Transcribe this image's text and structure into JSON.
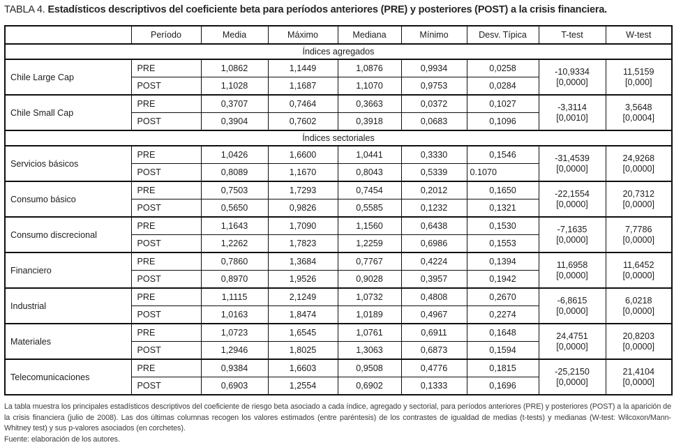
{
  "title": {
    "label": "TABLA 4.",
    "text": "Estadísticos descriptivos del coeficiente beta para períodos anteriores (PRE) y posteriores (POST) a la crisis financiera."
  },
  "colors": {
    "background": "#ffffff",
    "text": "#1c1c1c",
    "border": "#0e0e0e",
    "footnote_text": "#3a3a3a"
  },
  "table": {
    "columns": [
      "",
      "Período",
      "Media",
      "Máximo",
      "Mediana",
      "Mínimo",
      "Desv. Típica",
      "T-test",
      "W-test"
    ],
    "sections": [
      {
        "title": "Índices agregados",
        "groups": [
          {
            "name": "Chile Large Cap",
            "rows": [
              {
                "period": "PRE",
                "media": "1,0862",
                "maximo": "1,1449",
                "mediana": "1,0876",
                "minimo": "0,9934",
                "desv": "0,0258"
              },
              {
                "period": "POST",
                "media": "1,1028",
                "maximo": "1,1687",
                "mediana": "1,1070",
                "minimo": "0,9753",
                "desv": "0,0284"
              }
            ],
            "t_test": {
              "stat": "-10,9334",
              "p": "[0,0000]"
            },
            "w_test": {
              "stat": "11,5159",
              "p": "[0,000]"
            }
          },
          {
            "name": "Chile Small Cap",
            "rows": [
              {
                "period": "PRE",
                "media": "0,3707",
                "maximo": "0,7464",
                "mediana": "0,3663",
                "minimo": "0,0372",
                "desv": "0,1027"
              },
              {
                "period": "POST",
                "media": "0,3904",
                "maximo": "0,7602",
                "mediana": "0,3918",
                "minimo": "0,0683",
                "desv": "0,1096"
              }
            ],
            "t_test": {
              "stat": "-3,3114",
              "p": "[0,0010]"
            },
            "w_test": {
              "stat": "3,5648",
              "p": "[0,0004]"
            }
          }
        ]
      },
      {
        "title": "Índices sectoriales",
        "groups": [
          {
            "name": "Servicios básicos",
            "rows": [
              {
                "period": "PRE",
                "media": "1,0426",
                "maximo": "1,6600",
                "mediana": "1,0441",
                "minimo": "0,3330",
                "desv": "0,1546"
              },
              {
                "period": "POST",
                "media": "0,8089",
                "maximo": "1,1670",
                "mediana": "0,8043",
                "minimo": "0,5339",
                "desv": "0.1070",
                "desv_align": "left"
              }
            ],
            "t_test": {
              "stat": "-31,4539",
              "p": "[0,0000]"
            },
            "w_test": {
              "stat": "24,9268",
              "p": "[0,0000]"
            }
          },
          {
            "name": "Consumo básico",
            "rows": [
              {
                "period": "PRE",
                "media": "0,7503",
                "maximo": "1,7293",
                "mediana": "0,7454",
                "minimo": "0,2012",
                "desv": "0,1650"
              },
              {
                "period": "POST",
                "media": "0,5650",
                "maximo": "0,9826",
                "mediana": "0,5585",
                "minimo": "0,1232",
                "desv": "0,1321"
              }
            ],
            "t_test": {
              "stat": "-22,1554",
              "p": "[0,0000]"
            },
            "w_test": {
              "stat": "20,7312",
              "p": "[0,0000]"
            }
          },
          {
            "name": "Consumo discrecional",
            "rows": [
              {
                "period": "PRE",
                "media": "1,1643",
                "maximo": "1,7090",
                "mediana": "1,1560",
                "minimo": "0,6438",
                "desv": "0,1530"
              },
              {
                "period": "POST",
                "media": "1,2262",
                "maximo": "1,7823",
                "mediana": "1,2259",
                "minimo": "0,6986",
                "desv": "0,1553"
              }
            ],
            "t_test": {
              "stat": "-7,1635",
              "p": "[0,0000]"
            },
            "w_test": {
              "stat": "7,7786",
              "p": "[0,0000]"
            }
          },
          {
            "name": "Financiero",
            "rows": [
              {
                "period": "PRE",
                "media": "0,7860",
                "maximo": "1,3684",
                "mediana": "0,7767",
                "minimo": "0,4224",
                "desv": "0,1394"
              },
              {
                "period": "POST",
                "media": "0,8970",
                "maximo": "1,9526",
                "mediana": "0,9028",
                "minimo": "0,3957",
                "desv": "0,1942"
              }
            ],
            "t_test": {
              "stat": "11,6958",
              "p": "[0,0000]"
            },
            "w_test": {
              "stat": "11,6452",
              "p": "[0,0000]"
            }
          },
          {
            "name": "Industrial",
            "rows": [
              {
                "period": "PRE",
                "media": "1,1115",
                "maximo": "2,1249",
                "mediana": "1,0732",
                "minimo": "0,4808",
                "desv": "0,2670"
              },
              {
                "period": "POST",
                "media": "1,0163",
                "maximo": "1,8474",
                "mediana": "1,0189",
                "minimo": "0,4967",
                "desv": "0,2274"
              }
            ],
            "t_test": {
              "stat": "-6,8615",
              "p": "[0,0000]"
            },
            "w_test": {
              "stat": "6,0218",
              "p": "[0,0000]"
            }
          },
          {
            "name": "Materiales",
            "rows": [
              {
                "period": "PRE",
                "media": "1,0723",
                "maximo": "1,6545",
                "mediana": "1,0761",
                "minimo": "0,6911",
                "desv": "0,1648"
              },
              {
                "period": "POST",
                "media": "1,2946",
                "maximo": "1,8025",
                "mediana": "1,3063",
                "minimo": "0,6873",
                "desv": "0,1594"
              }
            ],
            "t_test": {
              "stat": "24,4751",
              "p": "[0,0000]"
            },
            "w_test": {
              "stat": "20,8203",
              "p": "[0,0000]"
            }
          },
          {
            "name": "Telecomunicaciones",
            "rows": [
              {
                "period": "PRE",
                "media": "0,9384",
                "maximo": "1,6603",
                "mediana": "0,9508",
                "minimo": "0,4776",
                "desv": "0,1815"
              },
              {
                "period": "POST",
                "media": "0,6903",
                "maximo": "1,2554",
                "mediana": "0,6902",
                "minimo": "0,1333",
                "desv": "0,1696"
              }
            ],
            "t_test": {
              "stat": "-25,2150",
              "p": "[0,0000]"
            },
            "w_test": {
              "stat": "21,4104",
              "p": "[0,0000]"
            }
          }
        ]
      }
    ]
  },
  "footnote": {
    "text": "La tabla muestra los principales estadísticos descriptivos del coeficiente de riesgo beta asociado a cada índice, agregado y sectorial, para períodos anteriores (PRE) y posteriores (POST) a la aparición de la crisis financiera (julio de 2008). Las dos últimas columnas recogen los valores estimados (entre paréntesis) de los contrastes de igualdad de medias (t-tests) y medianas (W-test: Wilcoxon/Mann-Whitney test) y sus p-valores asociados (en corchetes).",
    "fuente": "Fuente: elaboración de los autores."
  }
}
